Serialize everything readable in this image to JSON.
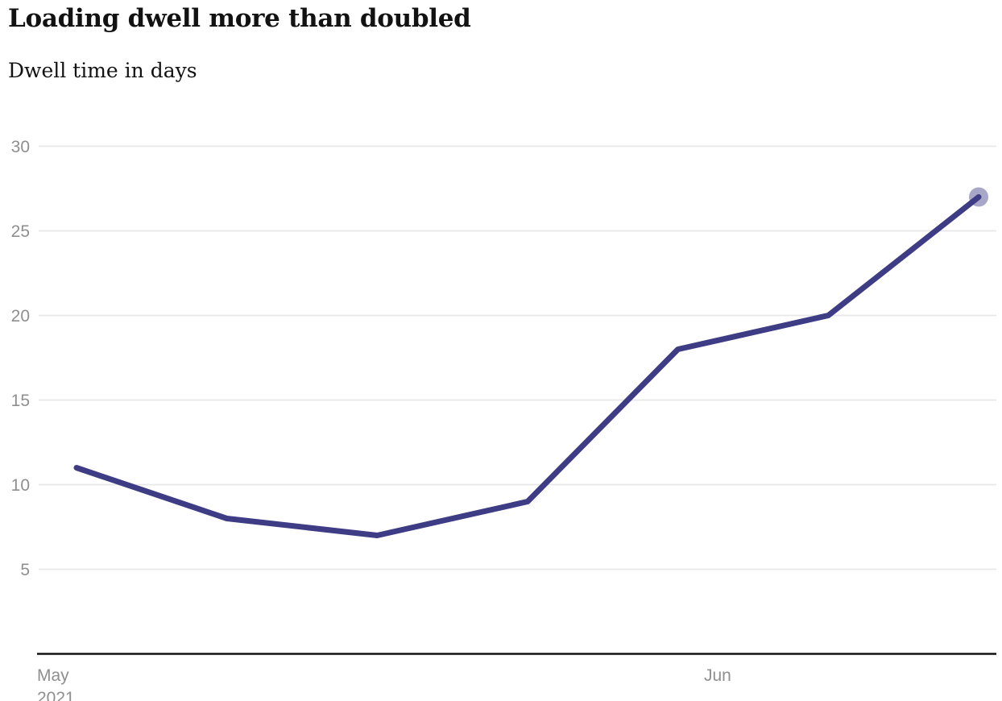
{
  "header": {
    "title": "Loading dwell more than doubled",
    "subtitle": "Dwell time in days"
  },
  "chart_data": {
    "type": "line",
    "title": "Loading dwell more than doubled",
    "subtitle": "Dwell time in days",
    "values": [
      11,
      8,
      7,
      9,
      18,
      20,
      27
    ],
    "points_evenly_spaced": true,
    "y_ticks": [
      5,
      10,
      15,
      20,
      25,
      30
    ],
    "ylim": [
      0,
      30
    ],
    "x_tick_labels": [
      {
        "label": "May",
        "sublabel": "2021"
      },
      {
        "label": "Jun"
      }
    ],
    "grid": true,
    "legend_position": "none",
    "last_point_highlighted": true,
    "colors": {
      "line": "#3e3c85",
      "endpoint_marker": "rgba(62,60,133,0.45)",
      "gridline": "#e8e8e8",
      "axis_line": "#121212",
      "tick_label": "#8f8f8f"
    }
  }
}
